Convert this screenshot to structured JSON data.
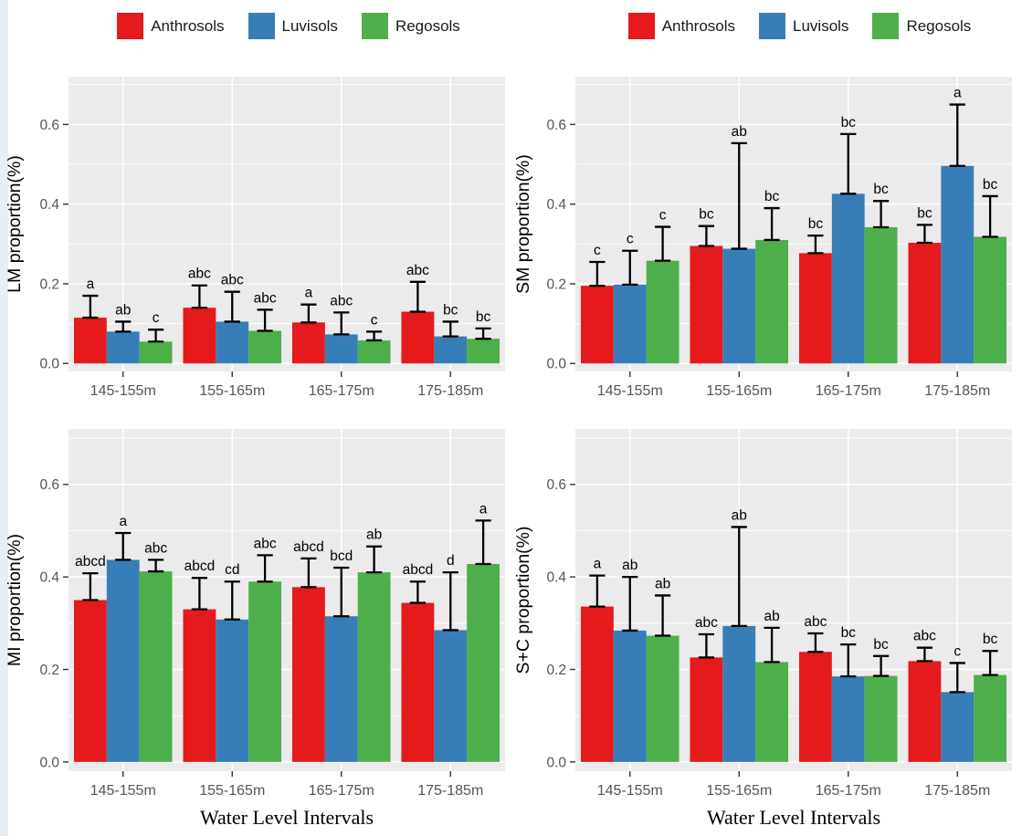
{
  "style": {
    "panel_background": "#EBEBEB",
    "grid_color": "#FFFFFF",
    "tick_mark_color": "#333333",
    "tick_label_color": "#555555",
    "axis_title_color": "#000000",
    "error_bar_color": "#000000",
    "page_edge_strip_color": "#e8eef5"
  },
  "legend": {
    "items": [
      {
        "label": "Anthrosols",
        "color": "#E41A1C"
      },
      {
        "label": "Luvisols",
        "color": "#377EB8"
      },
      {
        "label": "Regosols",
        "color": "#4DAF4A"
      }
    ]
  },
  "axes": {
    "x_title": "Water Level Intervals",
    "x_categories": [
      "145-155m",
      "155-165m",
      "165-175m",
      "175-185m"
    ],
    "ytick_labels": [
      "0.0",
      "0.2",
      "0.4",
      "0.6"
    ]
  },
  "chart_data": [
    {
      "type": "bar",
      "ylabel": "LM proportion(%)",
      "xlabel": "",
      "categories": [
        "145-155m",
        "155-165m",
        "165-175m",
        "175-185m"
      ],
      "yticks": [
        0.0,
        0.2,
        0.4,
        0.6
      ],
      "ylim": [
        0,
        0.72
      ],
      "grid": true,
      "legend_position": "top",
      "series": [
        {
          "name": "Anthrosols",
          "color": "#E41A1C",
          "values": [
            0.115,
            0.14,
            0.103,
            0.13
          ],
          "err_top": [
            0.17,
            0.196,
            0.148,
            0.205
          ],
          "sig_labels": [
            "a",
            "abc",
            "a",
            "abc"
          ]
        },
        {
          "name": "Luvisols",
          "color": "#377EB8",
          "values": [
            0.08,
            0.105,
            0.073,
            0.068
          ],
          "err_top": [
            0.105,
            0.18,
            0.128,
            0.105
          ],
          "sig_labels": [
            "ab",
            "abc",
            "abc",
            "bc"
          ]
        },
        {
          "name": "Regosols",
          "color": "#4DAF4A",
          "values": [
            0.055,
            0.082,
            0.058,
            0.062
          ],
          "err_top": [
            0.085,
            0.135,
            0.08,
            0.088
          ],
          "sig_labels": [
            "c",
            "abc",
            "c",
            "bc"
          ]
        }
      ]
    },
    {
      "type": "bar",
      "ylabel": "SM proportion(%)",
      "xlabel": "",
      "categories": [
        "145-155m",
        "155-165m",
        "165-175m",
        "175-185m"
      ],
      "yticks": [
        0.0,
        0.2,
        0.4,
        0.6
      ],
      "ylim": [
        0,
        0.72
      ],
      "grid": true,
      "legend_position": "top",
      "series": [
        {
          "name": "Anthrosols",
          "color": "#E41A1C",
          "values": [
            0.195,
            0.295,
            0.277,
            0.303
          ],
          "err_top": [
            0.255,
            0.345,
            0.321,
            0.348
          ],
          "sig_labels": [
            "c",
            "bc",
            "bc",
            "bc"
          ]
        },
        {
          "name": "Luvisols",
          "color": "#377EB8",
          "values": [
            0.198,
            0.288,
            0.426,
            0.496
          ],
          "err_top": [
            0.283,
            0.553,
            0.576,
            0.65
          ],
          "sig_labels": [
            "c",
            "ab",
            "bc",
            "a"
          ]
        },
        {
          "name": "Regosols",
          "color": "#4DAF4A",
          "values": [
            0.258,
            0.31,
            0.342,
            0.318
          ],
          "err_top": [
            0.343,
            0.39,
            0.408,
            0.42
          ],
          "sig_labels": [
            "c",
            "bc",
            "bc",
            "bc"
          ]
        }
      ]
    },
    {
      "type": "bar",
      "ylabel": "MI proportion(%)",
      "xlabel": "Water Level Intervals",
      "categories": [
        "145-155m",
        "155-165m",
        "165-175m",
        "175-185m"
      ],
      "yticks": [
        0.0,
        0.2,
        0.4,
        0.6
      ],
      "ylim": [
        0,
        0.72
      ],
      "grid": true,
      "legend_position": "top",
      "series": [
        {
          "name": "Anthrosols",
          "color": "#E41A1C",
          "values": [
            0.35,
            0.33,
            0.378,
            0.344
          ],
          "err_top": [
            0.408,
            0.398,
            0.44,
            0.39
          ],
          "sig_labels": [
            "abcd",
            "abcd",
            "abcd",
            "abcd"
          ]
        },
        {
          "name": "Luvisols",
          "color": "#377EB8",
          "values": [
            0.437,
            0.308,
            0.315,
            0.285
          ],
          "err_top": [
            0.495,
            0.39,
            0.42,
            0.41
          ],
          "sig_labels": [
            "a",
            "cd",
            "bcd",
            "d"
          ]
        },
        {
          "name": "Regosols",
          "color": "#4DAF4A",
          "values": [
            0.412,
            0.39,
            0.41,
            0.428
          ],
          "err_top": [
            0.437,
            0.447,
            0.466,
            0.522
          ],
          "sig_labels": [
            "abc",
            "abc",
            "ab",
            "a"
          ]
        }
      ]
    },
    {
      "type": "bar",
      "ylabel": "S+C proportion(%)",
      "xlabel": "Water Level Intervals",
      "categories": [
        "145-155m",
        "155-165m",
        "165-175m",
        "175-185m"
      ],
      "yticks": [
        0.0,
        0.2,
        0.4,
        0.6
      ],
      "ylim": [
        0,
        0.72
      ],
      "grid": true,
      "legend_position": "top",
      "series": [
        {
          "name": "Anthrosols",
          "color": "#E41A1C",
          "values": [
            0.336,
            0.226,
            0.238,
            0.218
          ],
          "err_top": [
            0.403,
            0.276,
            0.278,
            0.247
          ],
          "sig_labels": [
            "a",
            "abc",
            "abc",
            "abc"
          ]
        },
        {
          "name": "Luvisols",
          "color": "#377EB8",
          "values": [
            0.284,
            0.294,
            0.185,
            0.151
          ],
          "err_top": [
            0.4,
            0.508,
            0.254,
            0.214
          ],
          "sig_labels": [
            "ab",
            "ab",
            "bc",
            "c"
          ]
        },
        {
          "name": "Regosols",
          "color": "#4DAF4A",
          "values": [
            0.273,
            0.216,
            0.186,
            0.188
          ],
          "err_top": [
            0.36,
            0.29,
            0.229,
            0.24
          ],
          "sig_labels": [
            "ab",
            "ab",
            "bc",
            "bc"
          ]
        }
      ]
    }
  ]
}
